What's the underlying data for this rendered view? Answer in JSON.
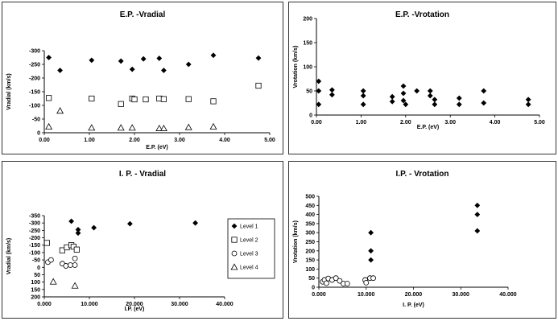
{
  "chart_data": [
    {
      "type": "scatter",
      "title": "E.P. -Vradial",
      "xlabel": "E.P. (eV)",
      "ylabel": "Vradial (km/s)",
      "xlim": [
        0,
        5
      ],
      "ylim": [
        0,
        300
      ],
      "y_reversed": true,
      "xticks": [
        "0.00",
        "1.00",
        "2.00",
        "3.00",
        "4.00",
        "5.00"
      ],
      "yticks": [
        "-300",
        "-250",
        "-200",
        "-150",
        "-100",
        "-50",
        "0"
      ],
      "grid": false,
      "series": [
        {
          "marker": "filled-diamond",
          "points": [
            [
              0.1,
              275
            ],
            [
              0.35,
              228
            ],
            [
              1.05,
              265
            ],
            [
              1.7,
              262
            ],
            [
              1.95,
              232
            ],
            [
              2.2,
              270
            ],
            [
              2.55,
              272
            ],
            [
              2.65,
              228
            ],
            [
              3.2,
              250
            ],
            [
              3.75,
              283
            ],
            [
              4.75,
              273
            ]
          ]
        },
        {
          "marker": "open-square",
          "points": [
            [
              0.1,
              127
            ],
            [
              1.05,
              125
            ],
            [
              1.7,
              105
            ],
            [
              1.95,
              125
            ],
            [
              2.0,
              122
            ],
            [
              2.25,
              122
            ],
            [
              2.55,
              125
            ],
            [
              2.65,
              123
            ],
            [
              3.2,
              123
            ],
            [
              3.75,
              115
            ],
            [
              4.75,
              172
            ]
          ]
        },
        {
          "marker": "open-triangle",
          "points": [
            [
              0.1,
              22
            ],
            [
              0.35,
              80
            ],
            [
              1.05,
              18
            ],
            [
              1.7,
              18
            ],
            [
              1.95,
              18
            ],
            [
              2.55,
              16
            ],
            [
              2.65,
              16
            ],
            [
              3.2,
              20
            ],
            [
              3.75,
              22
            ]
          ]
        }
      ]
    },
    {
      "type": "scatter",
      "title": "E.P. -Vrotation",
      "xlabel": "E.P. (eV)",
      "ylabel": "Vrotation (km/s)",
      "xlim": [
        0,
        5
      ],
      "ylim": [
        0,
        200
      ],
      "xticks": [
        "0.00",
        "1.00",
        "2.00",
        "3.00",
        "4.00",
        "5.00"
      ],
      "yticks": [
        "0",
        "50",
        "100",
        "150",
        "200"
      ],
      "grid": false,
      "series": [
        {
          "marker": "filled-diamond",
          "points": [
            [
              0.05,
              70
            ],
            [
              0.05,
              50
            ],
            [
              0.05,
              22
            ],
            [
              0.35,
              52
            ],
            [
              0.35,
              42
            ],
            [
              1.05,
              50
            ],
            [
              1.05,
              40
            ],
            [
              1.05,
              22
            ],
            [
              1.7,
              38
            ],
            [
              1.7,
              28
            ],
            [
              1.95,
              60
            ],
            [
              1.95,
              45
            ],
            [
              1.95,
              30
            ],
            [
              2.0,
              22
            ],
            [
              2.25,
              50
            ],
            [
              2.55,
              50
            ],
            [
              2.55,
              40
            ],
            [
              2.65,
              32
            ],
            [
              2.65,
              22
            ],
            [
              3.2,
              35
            ],
            [
              3.2,
              22
            ],
            [
              3.75,
              50
            ],
            [
              3.75,
              25
            ],
            [
              4.75,
              32
            ],
            [
              4.75,
              22
            ]
          ]
        }
      ]
    },
    {
      "type": "scatter",
      "title": "I. P. - Vradial",
      "xlabel": "I.P. (eV)",
      "ylabel": "Vradial (km/s)",
      "xlim": [
        0,
        40000
      ],
      "ylim": [
        -350,
        200
      ],
      "xticks": [
        "0.000",
        "10.000",
        "20.000",
        "30.000",
        "40.000"
      ],
      "yticks": [
        "-350",
        "-300",
        "-250",
        "-200",
        "-150",
        "-100",
        "-50",
        "0",
        "50",
        "100",
        "150",
        "200"
      ],
      "legend": {
        "position": "right",
        "entries": [
          "Level 1",
          "Level 2",
          "Level 3",
          "Level 4"
        ]
      },
      "grid": false,
      "series": [
        {
          "name": "Level 1",
          "marker": "filled-diamond",
          "points": [
            [
              6000,
              -312
            ],
            [
              7500,
              -255
            ],
            [
              7500,
              -232
            ],
            [
              11000,
              -268
            ],
            [
              19000,
              -295
            ],
            [
              33500,
              -300
            ]
          ]
        },
        {
          "name": "Level 2",
          "marker": "open-square",
          "points": [
            [
              600,
              -165
            ],
            [
              4000,
              -115
            ],
            [
              5000,
              -135
            ],
            [
              6000,
              -150
            ],
            [
              6500,
              -140
            ],
            [
              7200,
              -120
            ]
          ]
        },
        {
          "name": "Level 3",
          "marker": "open-circle",
          "points": [
            [
              800,
              -35
            ],
            [
              1500,
              -50
            ],
            [
              4000,
              -25
            ],
            [
              4800,
              -10
            ],
            [
              5800,
              -15
            ],
            [
              6800,
              -60
            ],
            [
              6800,
              -15
            ]
          ]
        },
        {
          "name": "Level 4",
          "marker": "open-triangle",
          "points": [
            [
              2000,
              98
            ],
            [
              6800,
              125
            ]
          ]
        }
      ]
    },
    {
      "type": "scatter",
      "title": "I.P. - Vrotation",
      "xlabel": "I. P. (eV)",
      "ylabel": "Vrotation (km/s)",
      "xlim": [
        0,
        40000
      ],
      "ylim": [
        0,
        500
      ],
      "xticks": [
        "0.000",
        "10.000",
        "20.000",
        "30.000",
        "40.000"
      ],
      "yticks": [
        "0",
        "50",
        "100",
        "150",
        "200",
        "250",
        "300",
        "350",
        "400",
        "450",
        "500"
      ],
      "grid": false,
      "series": [
        {
          "marker": "filled-diamond",
          "points": [
            [
              11000,
              300
            ],
            [
              11000,
              200
            ],
            [
              11000,
              150
            ],
            [
              33500,
              450
            ],
            [
              33500,
              400
            ],
            [
              33500,
              310
            ]
          ]
        },
        {
          "marker": "open-circle",
          "points": [
            [
              800,
              30
            ],
            [
              1200,
              40
            ],
            [
              1600,
              22
            ],
            [
              2000,
              48
            ],
            [
              2800,
              40
            ],
            [
              3600,
              50
            ],
            [
              4400,
              35
            ],
            [
              5200,
              20
            ],
            [
              6000,
              20
            ],
            [
              9800,
              40
            ],
            [
              10000,
              25
            ],
            [
              10800,
              50
            ],
            [
              11500,
              50
            ]
          ]
        }
      ]
    }
  ]
}
